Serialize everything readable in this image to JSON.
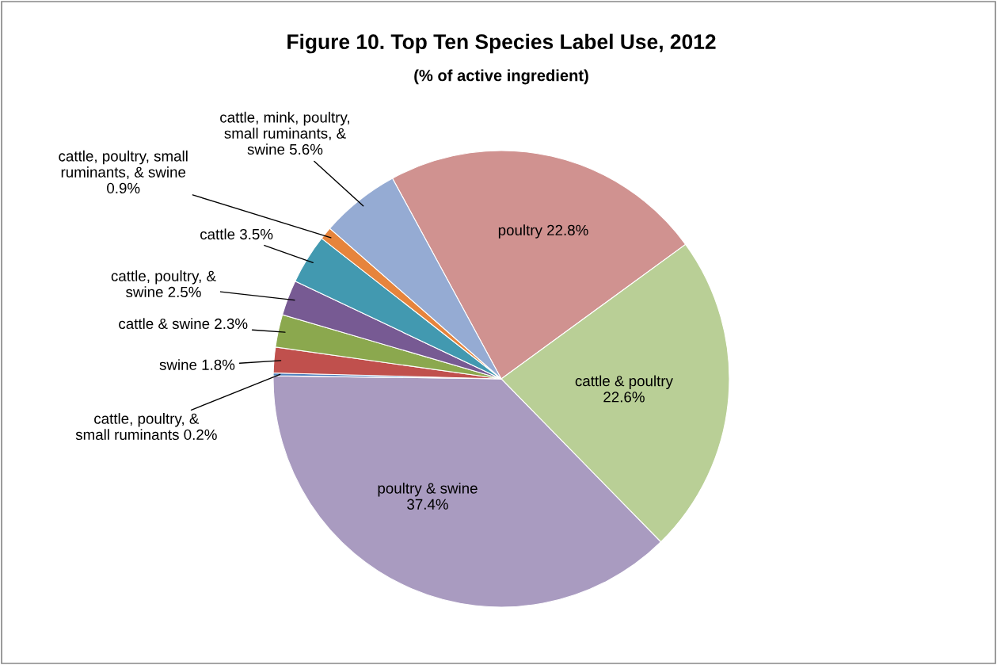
{
  "chart_data": {
    "type": "pie",
    "title": "Figure 10. Top Ten Species Label Use, 2012",
    "subtitle": "(% of active ingredient)",
    "categories": [
      "poultry",
      "cattle & poultry",
      "poultry & swine",
      "cattle, poultry, &\nsmall ruminants",
      "swine",
      "cattle & swine",
      "cattle, poultry, &\nswine",
      "cattle",
      "cattle, poultry, small\nruminants, & swine",
      "cattle, mink, poultry,\nsmall ruminants, &\nswine"
    ],
    "values": [
      22.8,
      22.6,
      37.4,
      0.2,
      1.8,
      2.3,
      2.5,
      3.5,
      0.9,
      5.6
    ],
    "value_labels": [
      "22.8%",
      "\n22.6%",
      "\n37.4%",
      "0.2%",
      "1.8%",
      "2.3%",
      "2.5%",
      "3.5%",
      "\n0.9%",
      "5.6%"
    ],
    "colors": [
      "#d09290",
      "#b9cf96",
      "#a99bc0",
      "#4f81bd",
      "#c0504d",
      "#8ba84e",
      "#775a93",
      "#4299b0",
      "#e6843c",
      "#95abd3"
    ]
  }
}
